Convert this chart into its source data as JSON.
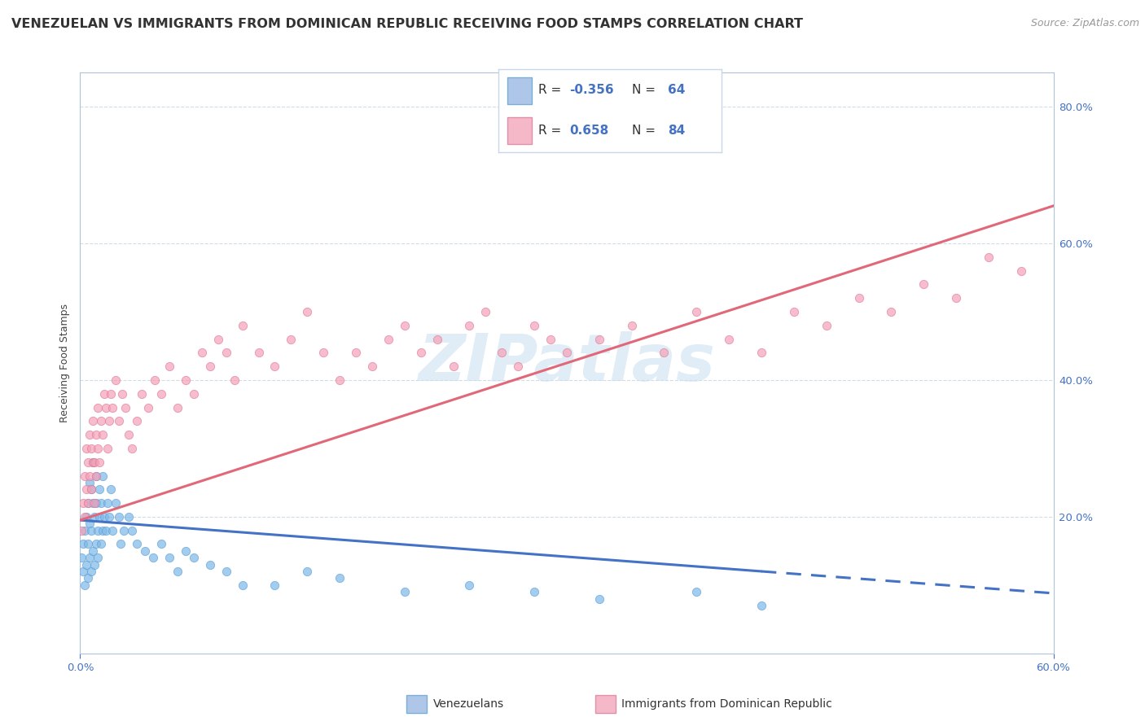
{
  "title": "VENEZUELAN VS IMMIGRANTS FROM DOMINICAN REPUBLIC RECEIVING FOOD STAMPS CORRELATION CHART",
  "source": "Source: ZipAtlas.com",
  "ylabel": "Receiving Food Stamps",
  "watermark": "ZIPatlas",
  "venezuelan_scatter_x": [
    0.001,
    0.002,
    0.002,
    0.003,
    0.003,
    0.004,
    0.004,
    0.005,
    0.005,
    0.005,
    0.006,
    0.006,
    0.006,
    0.007,
    0.007,
    0.007,
    0.008,
    0.008,
    0.008,
    0.009,
    0.009,
    0.01,
    0.01,
    0.01,
    0.011,
    0.011,
    0.012,
    0.012,
    0.013,
    0.013,
    0.014,
    0.014,
    0.015,
    0.016,
    0.017,
    0.018,
    0.019,
    0.02,
    0.022,
    0.024,
    0.025,
    0.027,
    0.03,
    0.032,
    0.035,
    0.04,
    0.045,
    0.05,
    0.055,
    0.06,
    0.065,
    0.07,
    0.08,
    0.09,
    0.1,
    0.12,
    0.14,
    0.16,
    0.2,
    0.24,
    0.28,
    0.32,
    0.38,
    0.42
  ],
  "venezuelan_scatter_y": [
    0.14,
    0.12,
    0.16,
    0.1,
    0.18,
    0.13,
    0.2,
    0.11,
    0.16,
    0.22,
    0.14,
    0.19,
    0.25,
    0.12,
    0.18,
    0.24,
    0.15,
    0.22,
    0.28,
    0.13,
    0.2,
    0.16,
    0.22,
    0.26,
    0.14,
    0.18,
    0.2,
    0.24,
    0.16,
    0.22,
    0.18,
    0.26,
    0.2,
    0.18,
    0.22,
    0.2,
    0.24,
    0.18,
    0.22,
    0.2,
    0.16,
    0.18,
    0.2,
    0.18,
    0.16,
    0.15,
    0.14,
    0.16,
    0.14,
    0.12,
    0.15,
    0.14,
    0.13,
    0.12,
    0.1,
    0.1,
    0.12,
    0.11,
    0.09,
    0.1,
    0.09,
    0.08,
    0.09,
    0.07
  ],
  "dominican_scatter_x": [
    0.001,
    0.002,
    0.003,
    0.003,
    0.004,
    0.004,
    0.005,
    0.005,
    0.006,
    0.006,
    0.007,
    0.007,
    0.008,
    0.008,
    0.009,
    0.009,
    0.01,
    0.01,
    0.011,
    0.011,
    0.012,
    0.013,
    0.014,
    0.015,
    0.016,
    0.017,
    0.018,
    0.019,
    0.02,
    0.022,
    0.024,
    0.026,
    0.028,
    0.03,
    0.032,
    0.035,
    0.038,
    0.042,
    0.046,
    0.05,
    0.055,
    0.06,
    0.065,
    0.07,
    0.075,
    0.08,
    0.085,
    0.09,
    0.095,
    0.1,
    0.11,
    0.12,
    0.13,
    0.14,
    0.15,
    0.16,
    0.17,
    0.18,
    0.19,
    0.2,
    0.21,
    0.22,
    0.23,
    0.24,
    0.25,
    0.26,
    0.27,
    0.28,
    0.29,
    0.3,
    0.32,
    0.34,
    0.36,
    0.38,
    0.4,
    0.42,
    0.44,
    0.46,
    0.48,
    0.5,
    0.52,
    0.54,
    0.56,
    0.58
  ],
  "dominican_scatter_y": [
    0.18,
    0.22,
    0.2,
    0.26,
    0.24,
    0.3,
    0.22,
    0.28,
    0.26,
    0.32,
    0.24,
    0.3,
    0.28,
    0.34,
    0.22,
    0.28,
    0.26,
    0.32,
    0.3,
    0.36,
    0.28,
    0.34,
    0.32,
    0.38,
    0.36,
    0.3,
    0.34,
    0.38,
    0.36,
    0.4,
    0.34,
    0.38,
    0.36,
    0.32,
    0.3,
    0.34,
    0.38,
    0.36,
    0.4,
    0.38,
    0.42,
    0.36,
    0.4,
    0.38,
    0.44,
    0.42,
    0.46,
    0.44,
    0.4,
    0.48,
    0.44,
    0.42,
    0.46,
    0.5,
    0.44,
    0.4,
    0.44,
    0.42,
    0.46,
    0.48,
    0.44,
    0.46,
    0.42,
    0.48,
    0.5,
    0.44,
    0.42,
    0.48,
    0.46,
    0.44,
    0.46,
    0.48,
    0.44,
    0.5,
    0.46,
    0.44,
    0.5,
    0.48,
    0.52,
    0.5,
    0.54,
    0.52,
    0.58,
    0.56
  ],
  "venezuelan_line": {
    "x0": 0.0,
    "x1": 0.6,
    "y0": 0.195,
    "y1": 0.088,
    "split": 0.42
  },
  "dominican_line": {
    "x0": 0.0,
    "x1": 0.6,
    "y0": 0.195,
    "y1": 0.655
  },
  "venezuelan_color": "#7db8e8",
  "venezuelan_edge": "#5b9bd5",
  "dominican_color": "#f4a0b8",
  "dominican_edge": "#e07890",
  "line_venezuelan_color": "#4472c4",
  "line_dominican_color": "#e06878",
  "scatter_size": 55,
  "scatter_alpha": 0.7,
  "background_color": "#ffffff",
  "grid_color": "#d0dce8",
  "title_fontsize": 11.5,
  "axis_label_fontsize": 9,
  "tick_fontsize": 9.5,
  "xlim": [
    0.0,
    0.6
  ],
  "ylim": [
    0.0,
    0.85
  ],
  "xtick_positions": [
    0.0,
    0.6
  ],
  "xtick_labels": [
    "0.0%",
    "60.0%"
  ],
  "ytick_positions": [
    0.2,
    0.4,
    0.6,
    0.8
  ],
  "ytick_labels": [
    "20.0%",
    "40.0%",
    "60.0%",
    "80.0%"
  ]
}
